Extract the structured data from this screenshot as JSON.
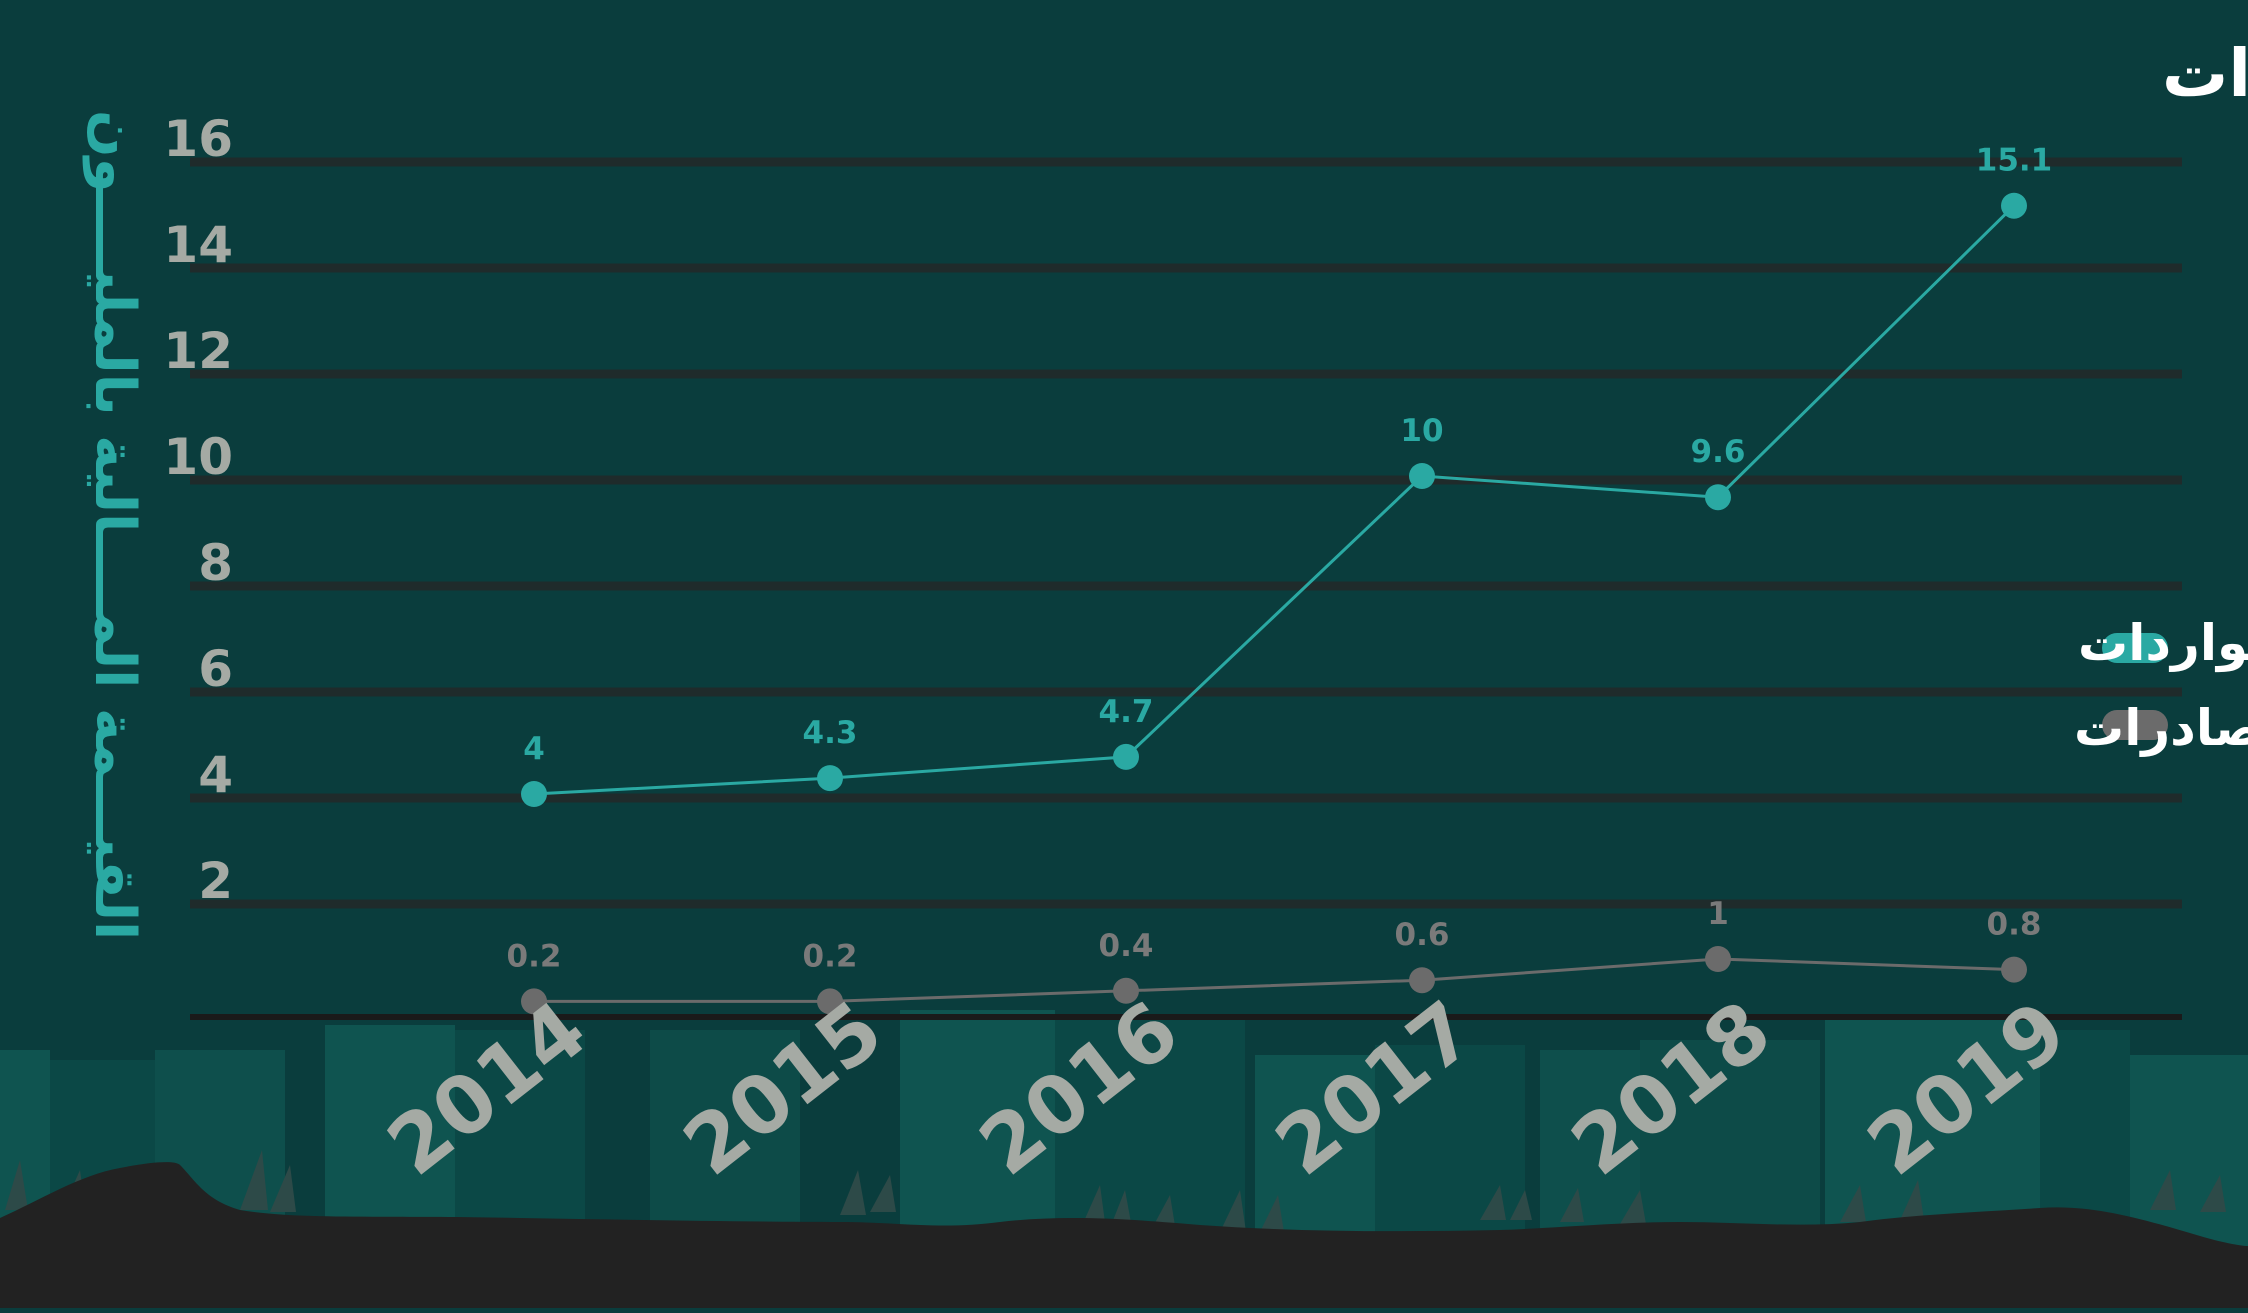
{
  "colors": {
    "background": "#0a3d3d",
    "imports": "#2aa9a3",
    "exports": "#6b6b6b",
    "grid": "#1f2b2b",
    "ground": "#222222"
  },
  "chart_data": {
    "type": "line",
    "title": "القيمة المالية للصادرات والواردات",
    "ylabel": "القيـــمة المــــالية بالمليــــون",
    "xlabel": "",
    "categories": [
      "2014",
      "2015",
      "2016",
      "2017",
      "2018",
      "2019"
    ],
    "y_ticks": [
      "2",
      "4",
      "6",
      "8",
      "10",
      "12",
      "14",
      "16"
    ],
    "ylim": [
      0,
      16.5
    ],
    "grid": true,
    "legend_position": "right",
    "series": [
      {
        "name": "الواردات",
        "key": "imports",
        "values": [
          4,
          4.3,
          4.7,
          10,
          9.6,
          15.1
        ],
        "labels": [
          "4",
          "4.3",
          "4.7",
          "10",
          "9.6",
          "15.1"
        ]
      },
      {
        "name": "الصادرات",
        "key": "exports",
        "values": [
          0.2,
          0.2,
          0.4,
          0.6,
          1,
          0.8
        ],
        "labels": [
          "0.2",
          "0.2",
          "0.4",
          "0.6",
          "1",
          "0.8"
        ]
      }
    ]
  }
}
